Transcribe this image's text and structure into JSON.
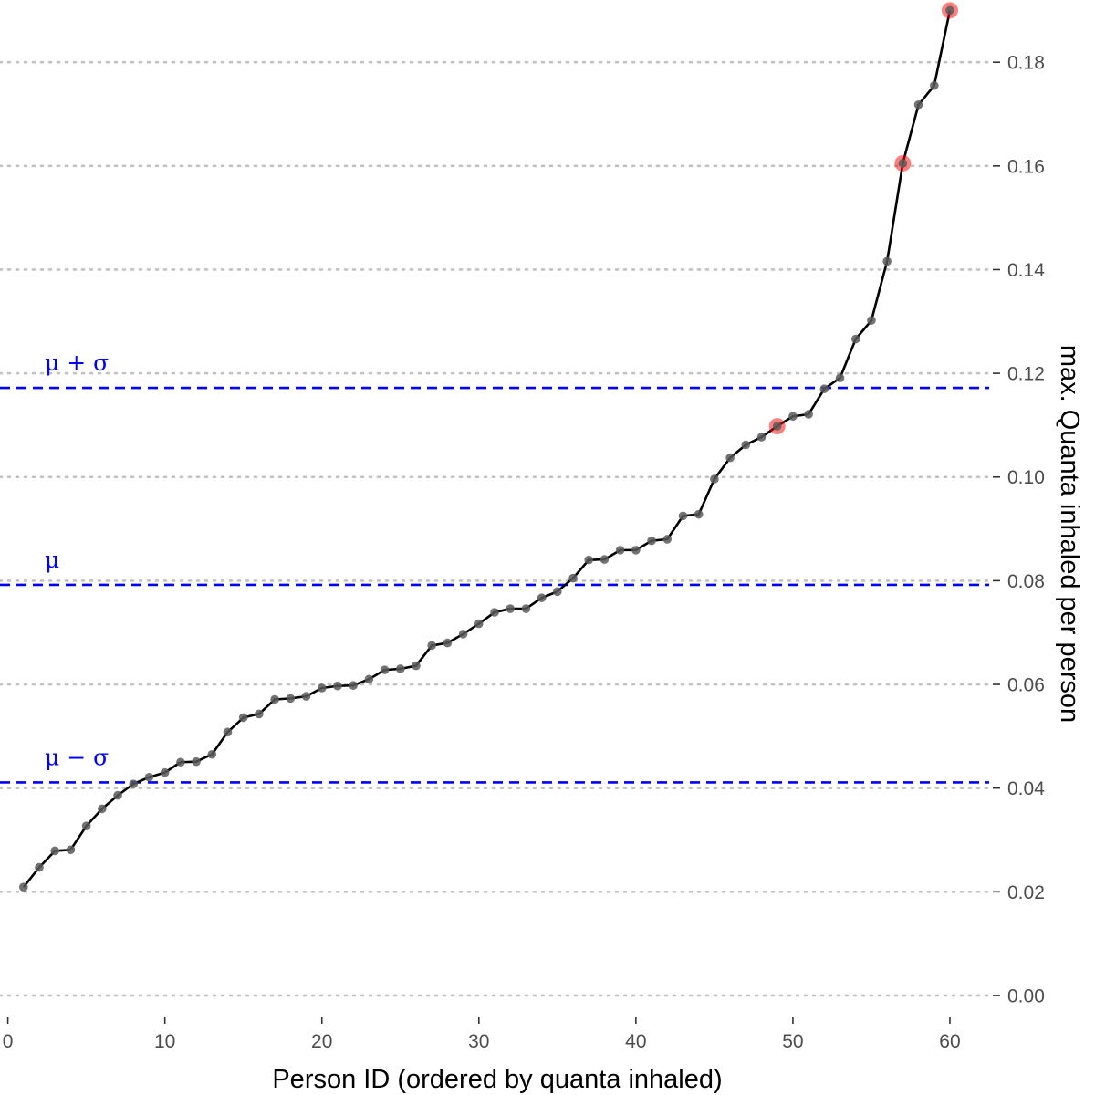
{
  "chart_data": {
    "type": "line",
    "title": "",
    "xlabel": "Person ID (ordered by quanta inhaled)",
    "ylabel": "max. Quanta inhaled per person",
    "xlim": [
      -0.5,
      62.5
    ],
    "ylim": [
      -0.003,
      0.192
    ],
    "x_ticks": [
      0,
      10,
      20,
      30,
      40,
      50,
      60
    ],
    "x_tick_labels": [
      "0",
      "10",
      "20",
      "30",
      "40",
      "50",
      "60"
    ],
    "y_ticks": [
      0.0,
      0.02,
      0.04,
      0.06,
      0.08,
      0.1,
      0.12,
      0.14,
      0.16,
      0.18
    ],
    "y_tick_labels": [
      "0.00",
      "0.02",
      "0.04",
      "0.06",
      "0.08",
      "0.10",
      "0.12",
      "0.14",
      "0.16",
      "0.18"
    ],
    "y_axis_position": "right",
    "grid": "horizontal-dotted",
    "legend": "none",
    "x": [
      1,
      2,
      3,
      4,
      5,
      6,
      7,
      8,
      9,
      10,
      11,
      12,
      13,
      14,
      15,
      16,
      17,
      18,
      19,
      20,
      21,
      22,
      23,
      24,
      25,
      26,
      27,
      28,
      29,
      30,
      31,
      32,
      33,
      34,
      35,
      36,
      37,
      38,
      39,
      40,
      41,
      42,
      43,
      44,
      45,
      46,
      47,
      48,
      49,
      50,
      51,
      52,
      53,
      54,
      55,
      56,
      57,
      58,
      59,
      60
    ],
    "series": [
      {
        "values": [
          0.0209,
          0.0247,
          0.0279,
          0.0281,
          0.0327,
          0.036,
          0.0386,
          0.0408,
          0.0421,
          0.043,
          0.045,
          0.0451,
          0.0465,
          0.0508,
          0.0536,
          0.0543,
          0.0571,
          0.0573,
          0.0577,
          0.0593,
          0.0597,
          0.0598,
          0.061,
          0.0628,
          0.063,
          0.0636,
          0.0675,
          0.068,
          0.0697,
          0.0717,
          0.0739,
          0.0746,
          0.0746,
          0.0767,
          0.0779,
          0.0805,
          0.084,
          0.0841,
          0.0859,
          0.0859,
          0.0877,
          0.088,
          0.0925,
          0.0928,
          0.0996,
          0.1037,
          0.1062,
          0.1077,
          0.1098,
          0.1117,
          0.1121,
          0.117,
          0.1191,
          0.1266,
          0.1302,
          0.1416,
          0.1605,
          0.1718,
          0.1755,
          0.19
        ],
        "color": "#000000",
        "point_color": "#595959"
      }
    ],
    "highlighted_points": [
      {
        "x": 49,
        "y": 0.1098
      },
      {
        "x": 57,
        "y": 0.1605
      },
      {
        "x": 60,
        "y": 0.19
      }
    ],
    "highlight_color": "#ff0000",
    "reference_lines": [
      {
        "label": "μ + σ",
        "y": 0.1172,
        "style": "dashed",
        "color": "#0000ff"
      },
      {
        "label": "μ",
        "y": 0.0792,
        "style": "dashed",
        "color": "#0000ff"
      },
      {
        "label": "μ − σ",
        "y": 0.0411,
        "style": "dashed",
        "color": "#0000ff"
      }
    ]
  }
}
